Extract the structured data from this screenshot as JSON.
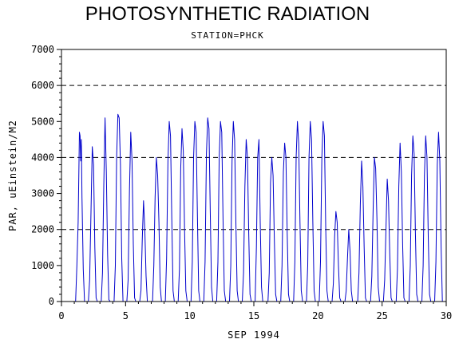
{
  "chart_data": {
    "type": "line",
    "title": "PHOTOSYNTHETIC RADIATION",
    "subtitle": "STATION=PHCK",
    "xlabel": "SEP 1994",
    "ylabel": "PAR, uEinstein/M2",
    "xlim": [
      0,
      30
    ],
    "ylim": [
      0,
      7000
    ],
    "x_ticks": [
      0,
      5,
      10,
      15,
      20,
      25,
      30
    ],
    "y_ticks": [
      0,
      1000,
      2000,
      3000,
      4000,
      5000,
      6000,
      7000
    ],
    "reference_lines": [
      2000,
      4000,
      6000
    ],
    "grid": false,
    "series_color": "#0000cc",
    "series": [
      {
        "x": [
          1.0,
          1.1,
          1.2,
          1.3,
          1.4,
          1.45,
          1.5,
          1.55,
          1.6,
          1.7,
          1.8,
          1.9,
          2.0,
          2.1,
          2.2,
          2.3,
          2.4,
          2.5,
          2.6,
          2.7,
          2.8,
          2.9,
          3.0,
          3.1,
          3.2,
          3.3,
          3.4,
          3.5,
          3.6,
          3.7,
          3.8,
          3.9,
          4.0,
          4.1,
          4.2,
          4.3,
          4.4,
          4.5,
          4.6,
          4.7,
          4.8,
          4.9,
          5.0,
          5.1,
          5.2,
          5.3,
          5.4,
          5.5,
          5.6,
          5.7,
          5.8,
          5.9,
          6.0,
          6.1,
          6.2,
          6.3,
          6.4,
          6.5,
          6.6,
          6.7,
          6.8,
          6.9,
          7.0,
          7.1,
          7.2,
          7.3,
          7.4,
          7.5,
          7.6,
          7.7,
          7.8,
          7.9,
          8.0,
          8.1,
          8.2,
          8.3,
          8.4,
          8.5,
          8.6,
          8.7,
          8.8,
          8.9,
          9.0,
          9.1,
          9.2,
          9.3,
          9.4,
          9.5,
          9.6,
          9.7,
          9.8,
          9.9,
          10.0,
          10.1,
          10.2,
          10.3,
          10.4,
          10.5,
          10.6,
          10.7,
          10.8,
          10.9,
          11.0,
          11.1,
          11.2,
          11.3,
          11.4,
          11.5,
          11.6,
          11.7,
          11.8,
          11.9,
          12.0,
          12.1,
          12.2,
          12.3,
          12.4,
          12.5,
          12.6,
          12.7,
          12.8,
          12.9,
          13.0,
          13.1,
          13.2,
          13.3,
          13.4,
          13.5,
          13.6,
          13.7,
          13.8,
          13.9,
          14.0,
          14.1,
          14.2,
          14.3,
          14.4,
          14.5,
          14.6,
          14.7,
          14.8,
          14.9,
          15.0,
          15.1,
          15.2,
          15.3,
          15.4,
          15.5,
          15.6,
          15.7,
          15.8,
          15.9,
          16.0,
          16.1,
          16.2,
          16.3,
          16.4,
          16.5,
          16.6,
          16.7,
          16.8,
          16.9,
          17.0,
          17.1,
          17.2,
          17.3,
          17.4,
          17.5,
          17.6,
          17.7,
          17.8,
          17.9,
          18.0,
          18.1,
          18.2,
          18.3,
          18.4,
          18.5,
          18.6,
          18.7,
          18.8,
          18.9,
          19.0,
          19.1,
          19.2,
          19.3,
          19.4,
          19.5,
          19.6,
          19.7,
          19.8,
          19.9,
          20.0,
          20.1,
          20.2,
          20.3,
          20.4,
          20.5,
          20.6,
          20.7,
          20.8,
          20.9,
          21.0,
          21.1,
          21.2,
          21.3,
          21.4,
          21.5,
          21.6,
          21.7,
          21.8,
          21.9,
          22.0,
          22.1,
          22.2,
          22.3,
          22.4,
          22.5,
          22.6,
          22.7,
          22.8,
          22.9,
          23.0,
          23.1,
          23.2,
          23.3,
          23.4,
          23.5,
          23.6,
          23.7,
          23.8,
          23.9,
          24.0,
          24.1,
          24.2,
          24.3,
          24.4,
          24.5,
          24.6,
          24.7,
          24.8,
          24.9,
          25.0,
          25.1,
          25.2,
          25.3,
          25.4,
          25.5,
          25.6,
          25.7,
          25.8,
          25.9,
          26.0,
          26.1,
          26.2,
          26.3,
          26.4,
          26.5,
          26.6,
          26.7,
          26.8,
          26.9,
          27.0,
          27.1,
          27.2,
          27.3,
          27.4,
          27.5,
          27.6,
          27.7,
          27.8,
          27.9,
          28.0,
          28.1,
          28.2,
          28.3,
          28.4,
          28.5,
          28.6,
          28.7,
          28.8,
          28.9,
          29.0,
          29.1,
          29.2,
          29.3,
          29.4,
          29.5,
          29.6,
          29.7,
          29.8,
          29.9,
          30.0
        ],
        "y": [
          0,
          0,
          1000,
          2200,
          4700,
          4600,
          3900,
          4500,
          2900,
          900,
          0,
          0,
          0,
          0,
          600,
          2500,
          4300,
          3800,
          1500,
          100,
          0,
          0,
          0,
          0,
          800,
          3200,
          5100,
          3600,
          1300,
          50,
          0,
          0,
          0,
          0,
          1000,
          4000,
          5200,
          5100,
          3800,
          1200,
          0,
          0,
          0,
          0,
          600,
          3100,
          4700,
          3900,
          1600,
          100,
          0,
          0,
          0,
          0,
          300,
          1700,
          2800,
          2000,
          700,
          0,
          0,
          0,
          0,
          0,
          1000,
          2900,
          4000,
          3500,
          2200,
          400,
          0,
          0,
          0,
          0,
          1200,
          3900,
          5000,
          4600,
          2300,
          300,
          0,
          0,
          0,
          0,
          900,
          3700,
          4800,
          4200,
          2000,
          300,
          0,
          0,
          0,
          0,
          1100,
          4000,
          5000,
          4700,
          2400,
          300,
          0,
          0,
          0,
          0,
          1100,
          4100,
          5100,
          4800,
          2500,
          400,
          0,
          0,
          0,
          0,
          1100,
          4000,
          5000,
          4700,
          2300,
          300,
          0,
          0,
          0,
          0,
          1000,
          3900,
          5000,
          4500,
          2200,
          300,
          0,
          0,
          0,
          0,
          800,
          3200,
          4500,
          4000,
          1900,
          200,
          0,
          0,
          0,
          0,
          1500,
          4000,
          4500,
          2200,
          400,
          0,
          0,
          0,
          0,
          0,
          800,
          3300,
          4000,
          3500,
          1700,
          200,
          0,
          0,
          0,
          0,
          1000,
          3600,
          4400,
          4000,
          1900,
          200,
          0,
          0,
          0,
          0,
          1100,
          4000,
          5000,
          4400,
          2200,
          300,
          0,
          0,
          0,
          0,
          1000,
          4000,
          5000,
          4500,
          2200,
          300,
          0,
          0,
          0,
          0,
          1100,
          4000,
          5000,
          4600,
          2100,
          300,
          0,
          0,
          0,
          0,
          500,
          1800,
          2500,
          2200,
          1000,
          100,
          0,
          0,
          0,
          0,
          300,
          1200,
          2000,
          1400,
          300,
          0,
          0,
          0,
          0,
          0,
          800,
          2700,
          3900,
          3200,
          1500,
          100,
          0,
          0,
          0,
          0,
          700,
          2500,
          4000,
          3700,
          2300,
          400,
          0,
          0,
          0,
          0,
          600,
          2000,
          3400,
          2800,
          1300,
          100,
          0,
          0,
          0,
          0,
          900,
          3200,
          4400,
          3600,
          1600,
          100,
          0,
          0,
          0,
          0,
          1000,
          3500,
          4600,
          4100,
          1900,
          200,
          0,
          0,
          0,
          0,
          1000,
          3500,
          4600,
          4000,
          1800,
          200,
          0,
          0,
          0,
          0,
          1100,
          3800,
          4700,
          3900,
          1500,
          0,
          0,
          0,
          0
        ]
      }
    ]
  }
}
